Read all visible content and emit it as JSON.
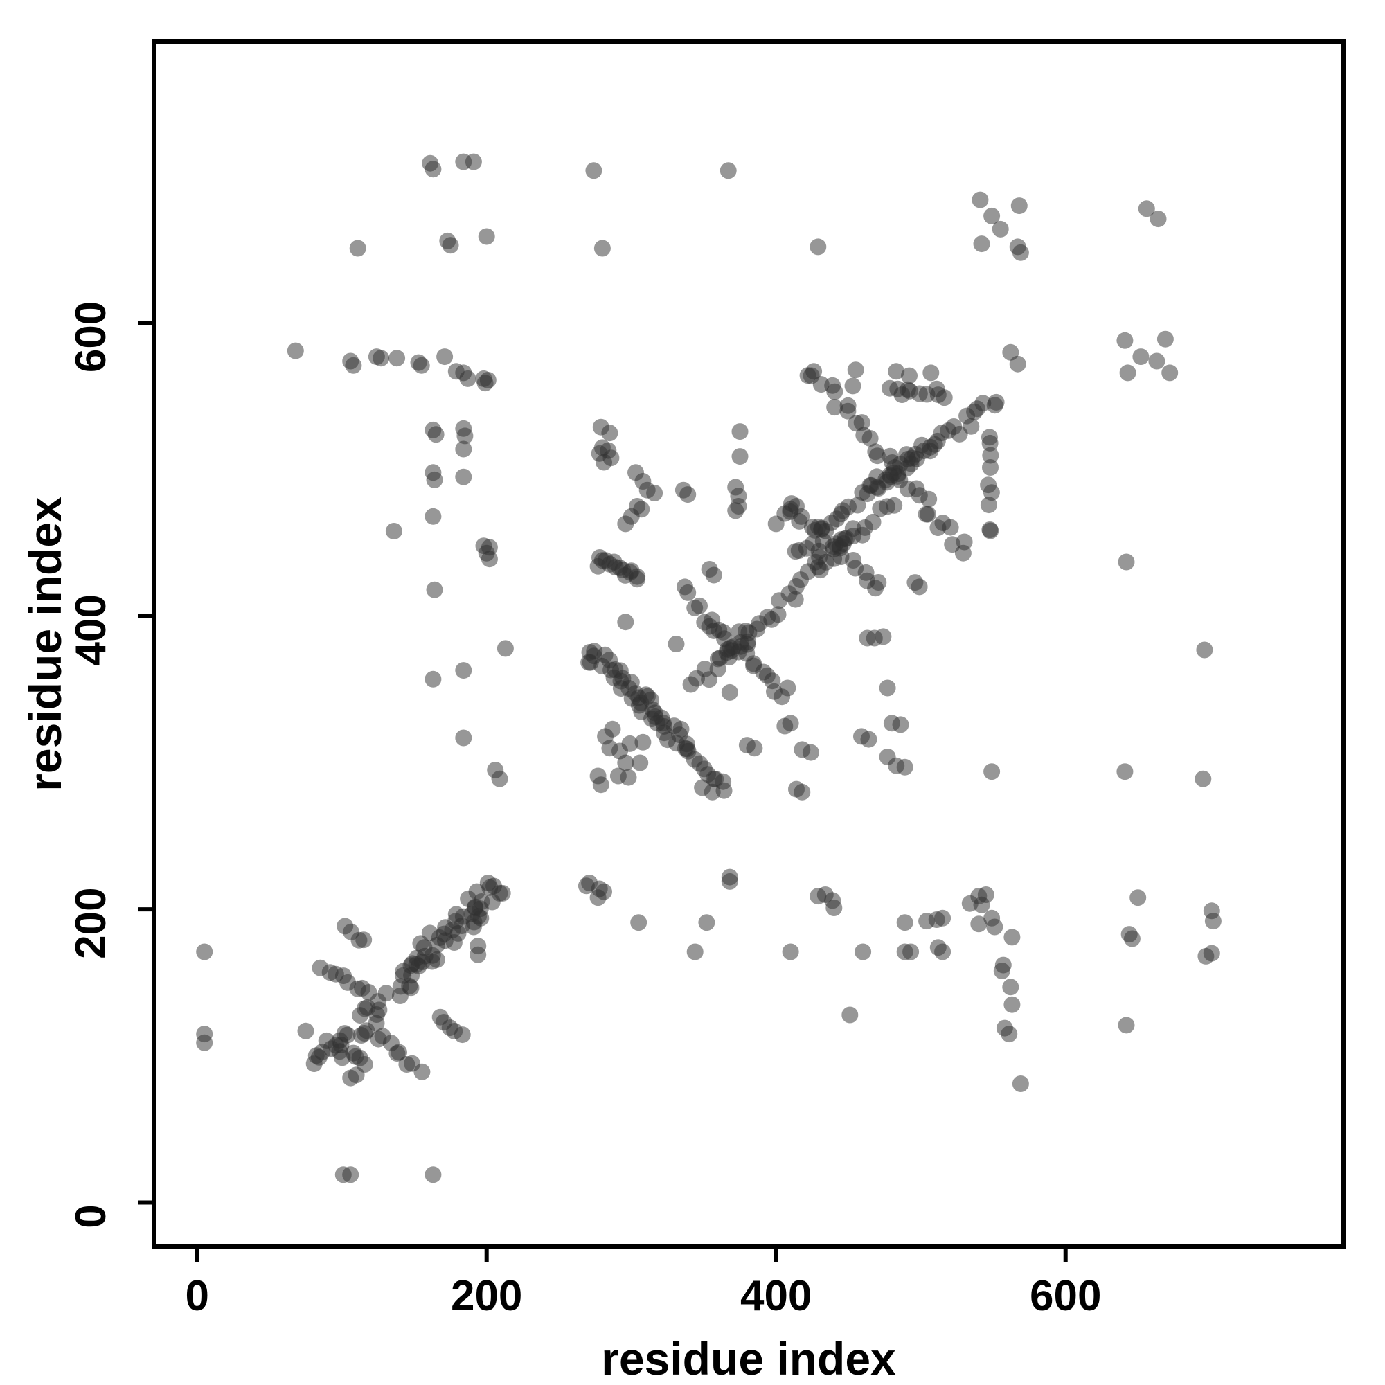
{
  "chart_data": {
    "type": "scatter",
    "title": "",
    "xlabel": "residue index",
    "ylabel": "residue index",
    "axes": {
      "xticks": [
        0,
        200,
        400,
        600
      ],
      "yticks": [
        0,
        200,
        400,
        600
      ],
      "xlim": [
        -30,
        792
      ],
      "ylim": [
        -30,
        792
      ],
      "grid": false,
      "legend": "none"
    },
    "style": {
      "point_fill": "#303030",
      "point_opacity": 0.5,
      "point_radius": 12,
      "axis_color": "#000000",
      "background": "#ffffff",
      "box_stroke_width": 6,
      "tick_length": 22,
      "tick_label_size": 62,
      "axis_title_size": 66
    },
    "points": [
      [
        5,
        171
      ],
      [
        5,
        115
      ],
      [
        5,
        109
      ],
      [
        101,
        19
      ],
      [
        106,
        19
      ],
      [
        163,
        19
      ],
      [
        110,
        87
      ],
      [
        108,
        102
      ],
      [
        75,
        117
      ],
      [
        106,
        85
      ],
      [
        68,
        581
      ],
      [
        106,
        574
      ],
      [
        108,
        571
      ],
      [
        124,
        577
      ],
      [
        127,
        576
      ],
      [
        138,
        576
      ],
      [
        153,
        573
      ],
      [
        155,
        571
      ],
      [
        171,
        577
      ],
      [
        179,
        567
      ],
      [
        184,
        566
      ],
      [
        187,
        562
      ],
      [
        198,
        562
      ],
      [
        199,
        559
      ],
      [
        201,
        561
      ],
      [
        163,
        527
      ],
      [
        165,
        524
      ],
      [
        184,
        528
      ],
      [
        185,
        523
      ],
      [
        184,
        514
      ],
      [
        161,
        709
      ],
      [
        163,
        705
      ],
      [
        184,
        710
      ],
      [
        191,
        710
      ],
      [
        274,
        704
      ],
      [
        367,
        704
      ],
      [
        280,
        651
      ],
      [
        429,
        652
      ],
      [
        111,
        651
      ],
      [
        173,
        656
      ],
      [
        175,
        653
      ],
      [
        200,
        659
      ],
      [
        541,
        684
      ],
      [
        568,
        680
      ],
      [
        549,
        673
      ],
      [
        555,
        664
      ],
      [
        542,
        654
      ],
      [
        567,
        652
      ],
      [
        569,
        648
      ],
      [
        656,
        678
      ],
      [
        664,
        671
      ],
      [
        562,
        580
      ],
      [
        567,
        572
      ],
      [
        641,
        588
      ],
      [
        669,
        589
      ],
      [
        652,
        577
      ],
      [
        663,
        574
      ],
      [
        643,
        566
      ],
      [
        672,
        566
      ],
      [
        163,
        498
      ],
      [
        164,
        493
      ],
      [
        184,
        495
      ],
      [
        163,
        468
      ],
      [
        136,
        458
      ],
      [
        198,
        448
      ],
      [
        202,
        447
      ],
      [
        200,
        443
      ],
      [
        202,
        439
      ],
      [
        164,
        418
      ],
      [
        213,
        378
      ],
      [
        184,
        363
      ],
      [
        163,
        357
      ],
      [
        184,
        317
      ],
      [
        206,
        295
      ],
      [
        209,
        289
      ],
      [
        278,
        511
      ],
      [
        284,
        513
      ],
      [
        303,
        498
      ],
      [
        308,
        492
      ],
      [
        311,
        486
      ],
      [
        307,
        473
      ],
      [
        304,
        475
      ],
      [
        300,
        468
      ],
      [
        296,
        463
      ],
      [
        316,
        484
      ],
      [
        280,
        515
      ],
      [
        286,
        508
      ],
      [
        281,
        505
      ],
      [
        375,
        509
      ],
      [
        375,
        526
      ],
      [
        279,
        529
      ],
      [
        285,
        525
      ],
      [
        336,
        486
      ],
      [
        339,
        483
      ],
      [
        372,
        488
      ],
      [
        374,
        482
      ],
      [
        374,
        475
      ],
      [
        372,
        472
      ],
      [
        277,
        434
      ],
      [
        280,
        438
      ],
      [
        288,
        437
      ],
      [
        292,
        433
      ],
      [
        300,
        431
      ],
      [
        304,
        427
      ],
      [
        337,
        420
      ],
      [
        339,
        416
      ],
      [
        354,
        432
      ],
      [
        357,
        428
      ],
      [
        296,
        396
      ],
      [
        331,
        381
      ],
      [
        354,
        393
      ],
      [
        357,
        390
      ],
      [
        368,
        348
      ],
      [
        380,
        312
      ],
      [
        385,
        310
      ],
      [
        406,
        325
      ],
      [
        410,
        327
      ],
      [
        418,
        309
      ],
      [
        424,
        307
      ],
      [
        404,
        345
      ],
      [
        408,
        351
      ],
      [
        463,
        385
      ],
      [
        468,
        385
      ],
      [
        474,
        386
      ],
      [
        477,
        351
      ],
      [
        459,
        318
      ],
      [
        464,
        316
      ],
      [
        480,
        327
      ],
      [
        486,
        326
      ],
      [
        477,
        304
      ],
      [
        483,
        298
      ],
      [
        489,
        297
      ],
      [
        414,
        282
      ],
      [
        418,
        280
      ],
      [
        349,
        283
      ],
      [
        356,
        280
      ],
      [
        357,
        289
      ],
      [
        364,
        281
      ],
      [
        282,
        318
      ],
      [
        287,
        323
      ],
      [
        285,
        310
      ],
      [
        292,
        308
      ],
      [
        299,
        313
      ],
      [
        296,
        300
      ],
      [
        306,
        300
      ],
      [
        291,
        291
      ],
      [
        298,
        290
      ],
      [
        277,
        291
      ],
      [
        279,
        285
      ],
      [
        308,
        314
      ],
      [
        314,
        330
      ],
      [
        318,
        327
      ],
      [
        400,
        463
      ],
      [
        406,
        470
      ],
      [
        410,
        473
      ],
      [
        414,
        475
      ],
      [
        496,
        423
      ],
      [
        499,
        420
      ],
      [
        642,
        437
      ],
      [
        696,
        377
      ],
      [
        549,
        294
      ],
      [
        641,
        294
      ],
      [
        695,
        289
      ],
      [
        271,
        218
      ],
      [
        278,
        214
      ],
      [
        281,
        212
      ],
      [
        305,
        191
      ],
      [
        352,
        191
      ],
      [
        368,
        219
      ],
      [
        368,
        222
      ],
      [
        344,
        171
      ],
      [
        410,
        171
      ],
      [
        429,
        209
      ],
      [
        434,
        210
      ],
      [
        439,
        206
      ],
      [
        440,
        201
      ],
      [
        451,
        128
      ],
      [
        460,
        171
      ],
      [
        489,
        191
      ],
      [
        504,
        192
      ],
      [
        511,
        193
      ],
      [
        489,
        171
      ],
      [
        493,
        171
      ],
      [
        512,
        174
      ],
      [
        192,
        201
      ],
      [
        196,
        194
      ],
      [
        191,
        188
      ],
      [
        194,
        175
      ],
      [
        194,
        169
      ],
      [
        201,
        218
      ],
      [
        209,
        211
      ],
      [
        211,
        211
      ],
      [
        269,
        216
      ],
      [
        277,
        208
      ],
      [
        515,
        194
      ],
      [
        515,
        171
      ],
      [
        534,
        204
      ],
      [
        540,
        209
      ],
      [
        545,
        210
      ],
      [
        542,
        203
      ],
      [
        540,
        190
      ],
      [
        549,
        194
      ],
      [
        551,
        188
      ],
      [
        563,
        181
      ],
      [
        557,
        162
      ],
      [
        556,
        158
      ],
      [
        562,
        147
      ],
      [
        563,
        135
      ],
      [
        558,
        119
      ],
      [
        561,
        115
      ],
      [
        569,
        81
      ],
      [
        650,
        208
      ],
      [
        644,
        183
      ],
      [
        646,
        180
      ],
      [
        642,
        121
      ],
      [
        701,
        199
      ],
      [
        702,
        192
      ],
      [
        701,
        170
      ],
      [
        697,
        168
      ],
      [
        483,
        567
      ],
      [
        492,
        564
      ],
      [
        507,
        566
      ],
      [
        453,
        557
      ],
      [
        484,
        555
      ],
      [
        487,
        551
      ],
      [
        511,
        555
      ],
      [
        512,
        551
      ],
      [
        426,
        567
      ],
      [
        455,
        568
      ]
    ],
    "bands": [
      [
        80,
        95,
        122,
        130,
        16,
        15
      ],
      [
        95,
        105,
        118,
        95,
        6,
        8
      ],
      [
        118,
        128,
        162,
        168,
        14,
        13
      ],
      [
        145,
        152,
        208,
        214,
        22,
        12
      ],
      [
        150,
        170,
        196,
        208,
        12,
        10
      ],
      [
        88,
        161,
        118,
        143,
        8,
        7
      ],
      [
        104,
        188,
        116,
        177,
        4,
        5
      ],
      [
        170,
        127,
        181,
        114,
        5,
        5
      ],
      [
        124,
        113,
        153,
        91,
        8,
        8
      ],
      [
        268,
        375,
        304,
        342,
        11,
        7
      ],
      [
        304,
        342,
        336,
        309,
        10,
        7
      ],
      [
        336,
        309,
        363,
        287,
        8,
        7
      ],
      [
        274,
        377,
        308,
        346,
        10,
        6
      ],
      [
        308,
        346,
        340,
        313,
        9,
        6
      ],
      [
        342,
        407,
        400,
        349,
        16,
        8
      ],
      [
        343,
        351,
        478,
        478,
        36,
        9
      ],
      [
        408,
        476,
        472,
        421,
        17,
        8
      ],
      [
        362,
        370,
        382,
        390,
        8,
        10
      ],
      [
        428,
        436,
        450,
        458,
        8,
        10
      ],
      [
        411,
        444,
        553,
        548,
        38,
        9
      ],
      [
        424,
        568,
        532,
        444,
        30,
        9
      ],
      [
        465,
        487,
        508,
        516,
        14,
        12
      ],
      [
        547,
        454,
        547,
        522,
        9,
        4
      ],
      [
        481,
        556,
        513,
        549,
        6,
        5
      ],
      [
        277,
        438,
        305,
        426,
        8,
        6
      ]
    ]
  }
}
